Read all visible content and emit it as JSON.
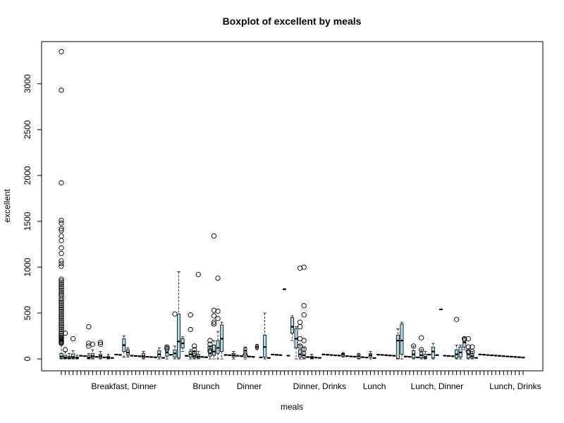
{
  "chart_data": {
    "type": "box",
    "title": "Boxplot of excellent by meals",
    "xlabel": "meals",
    "ylabel": "excellent",
    "ylim": [
      -130,
      3460
    ],
    "y_ticks": [
      0,
      500,
      1000,
      1500,
      2000,
      2500,
      3000
    ],
    "category_labels": [
      "Breakfast, Dinner",
      "Brunch",
      "Dinner",
      "Dinner, Drinks",
      "Lunch",
      "Lunch, Dinner",
      "Lunch, Drinks"
    ],
    "grid": false,
    "legend": "none",
    "box_fill": "#add8e6",
    "n_groups": 119,
    "labeled_group_index": {
      "Breakfast, Dinner": 16,
      "Brunch": 37,
      "Dinner": 48,
      "Dinner, Drinks": 66,
      "Lunch": 80,
      "Lunch, Dinner": 96,
      "Lunch, Drinks": 116
    },
    "groups": [
      {
        "index": 0,
        "q1": 5,
        "median": 25,
        "q3": 60,
        "lo": 0,
        "hi": 150,
        "outliers": [
          3350,
          2930,
          1920,
          1510,
          1480,
          1420,
          1400,
          1340,
          1290,
          1210,
          1150,
          1070,
          1040,
          1010,
          870,
          850,
          830,
          810,
          790,
          770,
          750,
          730,
          710,
          690,
          660,
          640,
          620,
          600,
          580,
          560,
          540,
          520,
          500,
          480,
          460,
          440,
          420,
          400,
          380,
          360,
          340,
          320,
          300,
          280,
          260,
          240,
          230,
          220,
          210,
          200,
          190,
          180,
          170
        ]
      },
      {
        "index": 1,
        "q1": 5,
        "median": 15,
        "q3": 40,
        "lo": 0,
        "hi": 80,
        "outliers": [
          280,
          100
        ]
      },
      {
        "index": 2,
        "q1": 5,
        "median": 12,
        "q3": 30,
        "lo": 0,
        "hi": 60,
        "outliers": []
      },
      {
        "index": 3,
        "q1": 8,
        "median": 20,
        "q3": 55,
        "lo": 0,
        "hi": 90,
        "outliers": [
          220
        ]
      },
      {
        "index": 4,
        "q1": 2,
        "median": 8,
        "q3": 20,
        "lo": 0,
        "hi": 40,
        "outliers": []
      },
      {
        "index": 7,
        "q1": 5,
        "median": 15,
        "q3": 40,
        "lo": 0,
        "hi": 60,
        "outliers": [
          350,
          170,
          140
        ]
      },
      {
        "index": 8,
        "q1": 10,
        "median": 30,
        "q3": 60,
        "lo": 0,
        "hi": 100,
        "outliers": [
          160
        ]
      },
      {
        "index": 10,
        "q1": 10,
        "median": 30,
        "q3": 50,
        "lo": 0,
        "hi": 80,
        "outliers": [
          180,
          160
        ]
      },
      {
        "index": 12,
        "q1": 5,
        "median": 15,
        "q3": 30,
        "lo": 0,
        "hi": 50,
        "outliers": []
      },
      {
        "index": 16,
        "q1": 80,
        "median": 150,
        "q3": 220,
        "lo": 20,
        "hi": 250,
        "outliers": []
      },
      {
        "index": 17,
        "q1": 40,
        "median": 70,
        "q3": 100,
        "lo": 20,
        "hi": 120,
        "outliers": []
      },
      {
        "index": 21,
        "q1": 10,
        "median": 30,
        "q3": 60,
        "lo": 0,
        "hi": 80,
        "outliers": []
      },
      {
        "index": 25,
        "q1": 20,
        "median": 50,
        "q3": 90,
        "lo": 0,
        "hi": 120,
        "outliers": []
      },
      {
        "index": 27,
        "q1": 30,
        "median": 70,
        "q3": 110,
        "lo": 0,
        "hi": 140,
        "outliers": [
          130,
          110
        ]
      },
      {
        "index": 29,
        "q1": 20,
        "median": 60,
        "q3": 100,
        "lo": 0,
        "hi": 140,
        "outliers": [
          490
        ]
      },
      {
        "index": 30,
        "q1": 10,
        "median": 190,
        "q3": 490,
        "lo": 0,
        "hi": 950,
        "outliers": []
      },
      {
        "index": 31,
        "q1": 120,
        "median": 170,
        "q3": 220,
        "lo": 80,
        "hi": 240,
        "outliers": []
      },
      {
        "index": 33,
        "q1": 20,
        "median": 50,
        "q3": 80,
        "lo": 0,
        "hi": 100,
        "outliers": [
          480,
          320
        ]
      },
      {
        "index": 34,
        "q1": 10,
        "median": 30,
        "q3": 60,
        "lo": 0,
        "hi": 90,
        "outliers": [
          140,
          100,
          60
        ]
      },
      {
        "index": 35,
        "q1": 10,
        "median": 25,
        "q3": 50,
        "lo": 0,
        "hi": 80,
        "outliers": [
          920
        ]
      },
      {
        "index": 38,
        "q1": 30,
        "median": 60,
        "q3": 100,
        "lo": 0,
        "hi": 130,
        "outliers": [
          200,
          160,
          120,
          90
        ]
      },
      {
        "index": 39,
        "q1": 40,
        "median": 80,
        "q3": 150,
        "lo": 0,
        "hi": 200,
        "outliers": [
          1340,
          530,
          470,
          400,
          380
        ]
      },
      {
        "index": 40,
        "q1": 60,
        "median": 120,
        "q3": 200,
        "lo": 0,
        "hi": 300,
        "outliers": [
          880,
          520,
          440
        ]
      },
      {
        "index": 41,
        "q1": 80,
        "median": 220,
        "q3": 370,
        "lo": 0,
        "hi": 400,
        "outliers": []
      },
      {
        "index": 44,
        "q1": 20,
        "median": 40,
        "q3": 60,
        "lo": 0,
        "hi": 80,
        "outliers": []
      },
      {
        "index": 47,
        "q1": 40,
        "median": 90,
        "q3": 120,
        "lo": 0,
        "hi": 130,
        "outliers": [
          40
        ]
      },
      {
        "index": 50,
        "q1": 110,
        "median": 130,
        "q3": 150,
        "lo": 100,
        "hi": 160,
        "outliers": []
      },
      {
        "index": 52,
        "q1": 20,
        "median": 130,
        "q3": 260,
        "lo": 0,
        "hi": 500,
        "outliers": []
      },
      {
        "index": 57,
        "q1": 760,
        "median": 760,
        "q3": 760,
        "lo": 760,
        "hi": 760,
        "outliers": []
      },
      {
        "index": 59,
        "q1": 280,
        "median": 350,
        "q3": 450,
        "lo": 200,
        "hi": 470,
        "outliers": []
      },
      {
        "index": 60,
        "q1": 120,
        "median": 220,
        "q3": 330,
        "lo": 0,
        "hi": 350,
        "outliers": []
      },
      {
        "index": 61,
        "q1": 20,
        "median": 50,
        "q3": 100,
        "lo": 0,
        "hi": 150,
        "outliers": [
          990,
          400,
          350,
          220,
          140
        ]
      },
      {
        "index": 62,
        "q1": 10,
        "median": 40,
        "q3": 80,
        "lo": 0,
        "hi": 120,
        "outliers": [
          1000,
          580,
          480,
          200,
          110
        ]
      },
      {
        "index": 64,
        "q1": 5,
        "median": 15,
        "q3": 30,
        "lo": 0,
        "hi": 50,
        "outliers": []
      },
      {
        "index": 72,
        "q1": 30,
        "median": 50,
        "q3": 60,
        "lo": 20,
        "hi": 70,
        "outliers": []
      },
      {
        "index": 76,
        "q1": 5,
        "median": 30,
        "q3": 50,
        "lo": 0,
        "hi": 60,
        "outliers": []
      },
      {
        "index": 79,
        "q1": 20,
        "median": 40,
        "q3": 60,
        "lo": 0,
        "hi": 80,
        "outliers": []
      },
      {
        "index": 86,
        "q1": 5,
        "median": 200,
        "q3": 260,
        "lo": 0,
        "hi": 330,
        "outliers": []
      },
      {
        "index": 87,
        "q1": 50,
        "median": 200,
        "q3": 380,
        "lo": 0,
        "hi": 400,
        "outliers": []
      },
      {
        "index": 90,
        "q1": 10,
        "median": 50,
        "q3": 90,
        "lo": 0,
        "hi": 140,
        "outliers": [
          140
        ]
      },
      {
        "index": 92,
        "q1": 10,
        "median": 40,
        "q3": 80,
        "lo": 0,
        "hi": 100,
        "outliers": [
          230,
          100
        ]
      },
      {
        "index": 93,
        "q1": 5,
        "median": 20,
        "q3": 50,
        "lo": 0,
        "hi": 80,
        "outliers": []
      },
      {
        "index": 95,
        "q1": 10,
        "median": 80,
        "q3": 130,
        "lo": 0,
        "hi": 170,
        "outliers": []
      },
      {
        "index": 97,
        "q1": 540,
        "median": 540,
        "q3": 540,
        "lo": 540,
        "hi": 540,
        "outliers": []
      },
      {
        "index": 101,
        "q1": 10,
        "median": 50,
        "q3": 100,
        "lo": 0,
        "hi": 150,
        "outliers": [
          430
        ]
      },
      {
        "index": 102,
        "q1": 20,
        "median": 70,
        "q3": 130,
        "lo": 0,
        "hi": 150,
        "outliers": []
      },
      {
        "index": 103,
        "q1": 130,
        "median": 180,
        "q3": 230,
        "lo": 100,
        "hi": 240,
        "outliers": [
          220
        ]
      },
      {
        "index": 104,
        "q1": 10,
        "median": 50,
        "q3": 90,
        "lo": 0,
        "hi": 110,
        "outliers": [
          220,
          130,
          80
        ]
      },
      {
        "index": 105,
        "q1": 10,
        "median": 30,
        "q3": 60,
        "lo": 0,
        "hi": 80,
        "outliers": [
          130,
          80
        ]
      }
    ]
  }
}
